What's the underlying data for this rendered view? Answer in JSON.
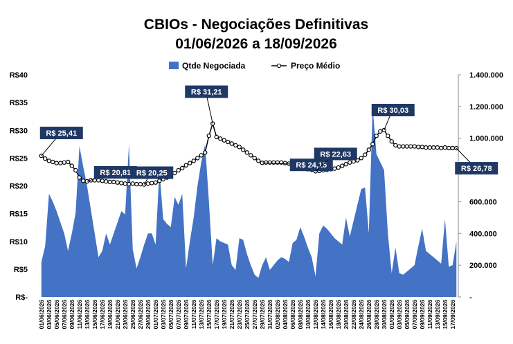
{
  "chart_data": {
    "type": "combo",
    "title": [
      "CBIOs - Negociações Definitivas",
      "01/06/2026 a 18/09/2026"
    ],
    "categories": [
      "01/06/2026",
      null,
      "03/06/2026",
      null,
      "05/06/2026",
      null,
      "07/06/2026",
      null,
      "09/06/2026",
      null,
      "11/06/2026",
      null,
      "13/06/2026",
      null,
      "15/06/2026",
      null,
      "17/06/2026",
      null,
      "19/06/2026",
      null,
      "21/06/2026",
      null,
      "23/06/2026",
      null,
      "25/06/2026",
      null,
      "27/06/2026",
      null,
      "29/06/2026",
      null,
      "01/07/2026",
      null,
      "03/07/2026",
      null,
      "05/07/2026",
      null,
      "07/07/2026",
      null,
      "09/07/2026",
      null,
      "11/07/2026",
      null,
      "13/07/2026",
      null,
      "15/07/2026",
      null,
      "17/07/2026",
      null,
      "19/07/2026",
      null,
      "21/07/2026",
      null,
      "23/07/2026",
      null,
      "25/07/2026",
      null,
      "27/07/2026",
      null,
      "29/07/2026",
      null,
      "31/07/2026",
      null,
      "02/08/2026",
      null,
      "04/08/2026",
      null,
      "06/08/2026",
      null,
      "08/08/2026",
      null,
      "10/08/2026",
      null,
      "12/08/2026",
      null,
      "14/08/2026",
      null,
      "16/08/2026",
      null,
      "18/08/2026",
      null,
      "20/08/2026",
      null,
      "22/08/2026",
      null,
      "24/08/2026",
      null,
      "26/08/2026",
      null,
      "28/08/2026",
      null,
      "30/08/2026",
      null,
      "01/09/2026",
      null,
      "03/09/2026",
      null,
      "05/09/2026",
      null,
      "07/09/2026",
      null,
      "09/09/2026",
      null,
      "11/09/2026",
      null,
      "13/09/2026",
      null,
      "15/09/2026",
      null,
      "17/09/2026",
      null
    ],
    "series": [
      {
        "name": "Qtde Negociada",
        "type": "area",
        "axis": "y2",
        "color": "#4472c4",
        "values": [
          220000,
          320000,
          650000,
          600000,
          540000,
          470000,
          400000,
          290000,
          400000,
          530000,
          950000,
          820000,
          700000,
          550000,
          400000,
          250000,
          290000,
          400000,
          330000,
          400000,
          470000,
          540000,
          520000,
          960000,
          300000,
          180000,
          250000,
          330000,
          400000,
          400000,
          330000,
          800000,
          490000,
          460000,
          440000,
          630000,
          580000,
          650000,
          180000,
          350000,
          500000,
          700000,
          850000,
          960000,
          600000,
          200000,
          370000,
          350000,
          340000,
          330000,
          200000,
          170000,
          370000,
          360000,
          270000,
          200000,
          140000,
          120000,
          200000,
          250000,
          170000,
          200000,
          230000,
          250000,
          240000,
          220000,
          340000,
          360000,
          440000,
          380000,
          310000,
          250000,
          130000,
          400000,
          450000,
          430000,
          400000,
          370000,
          350000,
          330000,
          500000,
          380000,
          480000,
          580000,
          680000,
          690000,
          400000,
          1200000,
          900000,
          850000,
          800000,
          400000,
          150000,
          310000,
          150000,
          140000,
          160000,
          180000,
          200000,
          320000,
          430000,
          290000,
          270000,
          250000,
          230000,
          210000,
          490000,
          190000,
          200000,
          350000
        ]
      },
      {
        "name": "Preço Médio",
        "type": "line",
        "color": "#000000",
        "values": [
          25.41,
          24.9,
          24.5,
          24.3,
          24.1,
          24.1,
          24.2,
          24.3,
          23.6,
          22.8,
          21.5,
          20.9,
          20.81,
          21,
          21,
          21,
          20.9,
          20.8,
          20.7,
          20.7,
          20.6,
          20.5,
          20.4,
          20.3,
          20.4,
          20.3,
          20.3,
          20.25,
          20.4,
          20.5,
          20.6,
          20.9,
          21.2,
          21.5,
          21.8,
          22.3,
          22.8,
          23.2,
          23.7,
          24.1,
          24.5,
          25,
          25.5,
          26,
          29,
          31.21,
          28.8,
          28.5,
          28.2,
          27.9,
          27.6,
          27.3,
          27,
          26.5,
          26,
          25.5,
          25,
          24.5,
          24.15,
          24.2,
          24.2,
          24.2,
          24.2,
          24.2,
          24.1,
          24,
          24,
          23.8,
          23.5,
          23.2,
          23,
          22.9,
          22.63,
          22.7,
          22.8,
          22.9,
          23,
          23.1,
          23.3,
          23.6,
          23.9,
          24.2,
          24.4,
          24.6,
          25,
          25.6,
          26.5,
          27.5,
          29,
          29.8,
          30.03,
          29,
          28,
          27.3,
          27.1,
          27.1,
          27.1,
          27.1,
          27.1,
          27,
          27,
          26.9,
          26.9,
          26.9,
          26.9,
          26.8,
          26.9,
          26.8,
          26.8,
          26.78
        ],
        "value_labels": [
          "R$ 25,41",
          null,
          null,
          null,
          null,
          null,
          null,
          null,
          null,
          null,
          null,
          null,
          "R$ 20,81",
          null,
          null,
          null,
          null,
          null,
          null,
          null,
          null,
          null,
          null,
          null,
          null,
          null,
          null,
          "R$ 20,25",
          null,
          null,
          null,
          null,
          null,
          null,
          null,
          null,
          null,
          null,
          null,
          null,
          null,
          null,
          null,
          null,
          null,
          "R$ 31,21",
          null,
          null,
          null,
          null,
          null,
          null,
          null,
          null,
          null,
          null,
          null,
          null,
          "R$ 24,15",
          null,
          null,
          null,
          null,
          null,
          null,
          null,
          null,
          null,
          null,
          null,
          null,
          null,
          "R$ 22,63",
          null,
          null,
          null,
          null,
          null,
          null,
          null,
          null,
          null,
          null,
          null,
          null,
          null,
          null,
          null,
          null,
          null,
          "R$ 30,03",
          null,
          null,
          null,
          null,
          null,
          null,
          null,
          null,
          null,
          null,
          null,
          null,
          null,
          null,
          null,
          null,
          null,
          null,
          "R$ 26,78"
        ]
      }
    ],
    "ylim": [
      0,
      40
    ],
    "yticks": [
      {
        "value": 0,
        "label": "R$-"
      },
      {
        "value": 5,
        "label": "R$5"
      },
      {
        "value": 10,
        "label": "R$10"
      },
      {
        "value": 15,
        "label": "R$15"
      },
      {
        "value": 20,
        "label": "R$20"
      },
      {
        "value": 25,
        "label": "R$25"
      },
      {
        "value": 30,
        "label": "R$30"
      },
      {
        "value": 35,
        "label": "R$35"
      },
      {
        "value": 40,
        "label": "R$40"
      }
    ],
    "y2lim": [
      0,
      1400000
    ],
    "y2ticks": [
      {
        "value": 0,
        "label": "-"
      },
      {
        "value": 200000,
        "label": "200.000"
      },
      {
        "value": 400000,
        "label": "400.000"
      },
      {
        "value": 600000,
        "label": "600.000"
      },
      {
        "value": 800000,
        "label": "800.000"
      },
      {
        "value": 1000000,
        "label": "1.000.000"
      },
      {
        "value": 1200000,
        "label": "1.200.000"
      },
      {
        "value": 1400000,
        "label": "1.400.000"
      }
    ],
    "legend": "top"
  }
}
